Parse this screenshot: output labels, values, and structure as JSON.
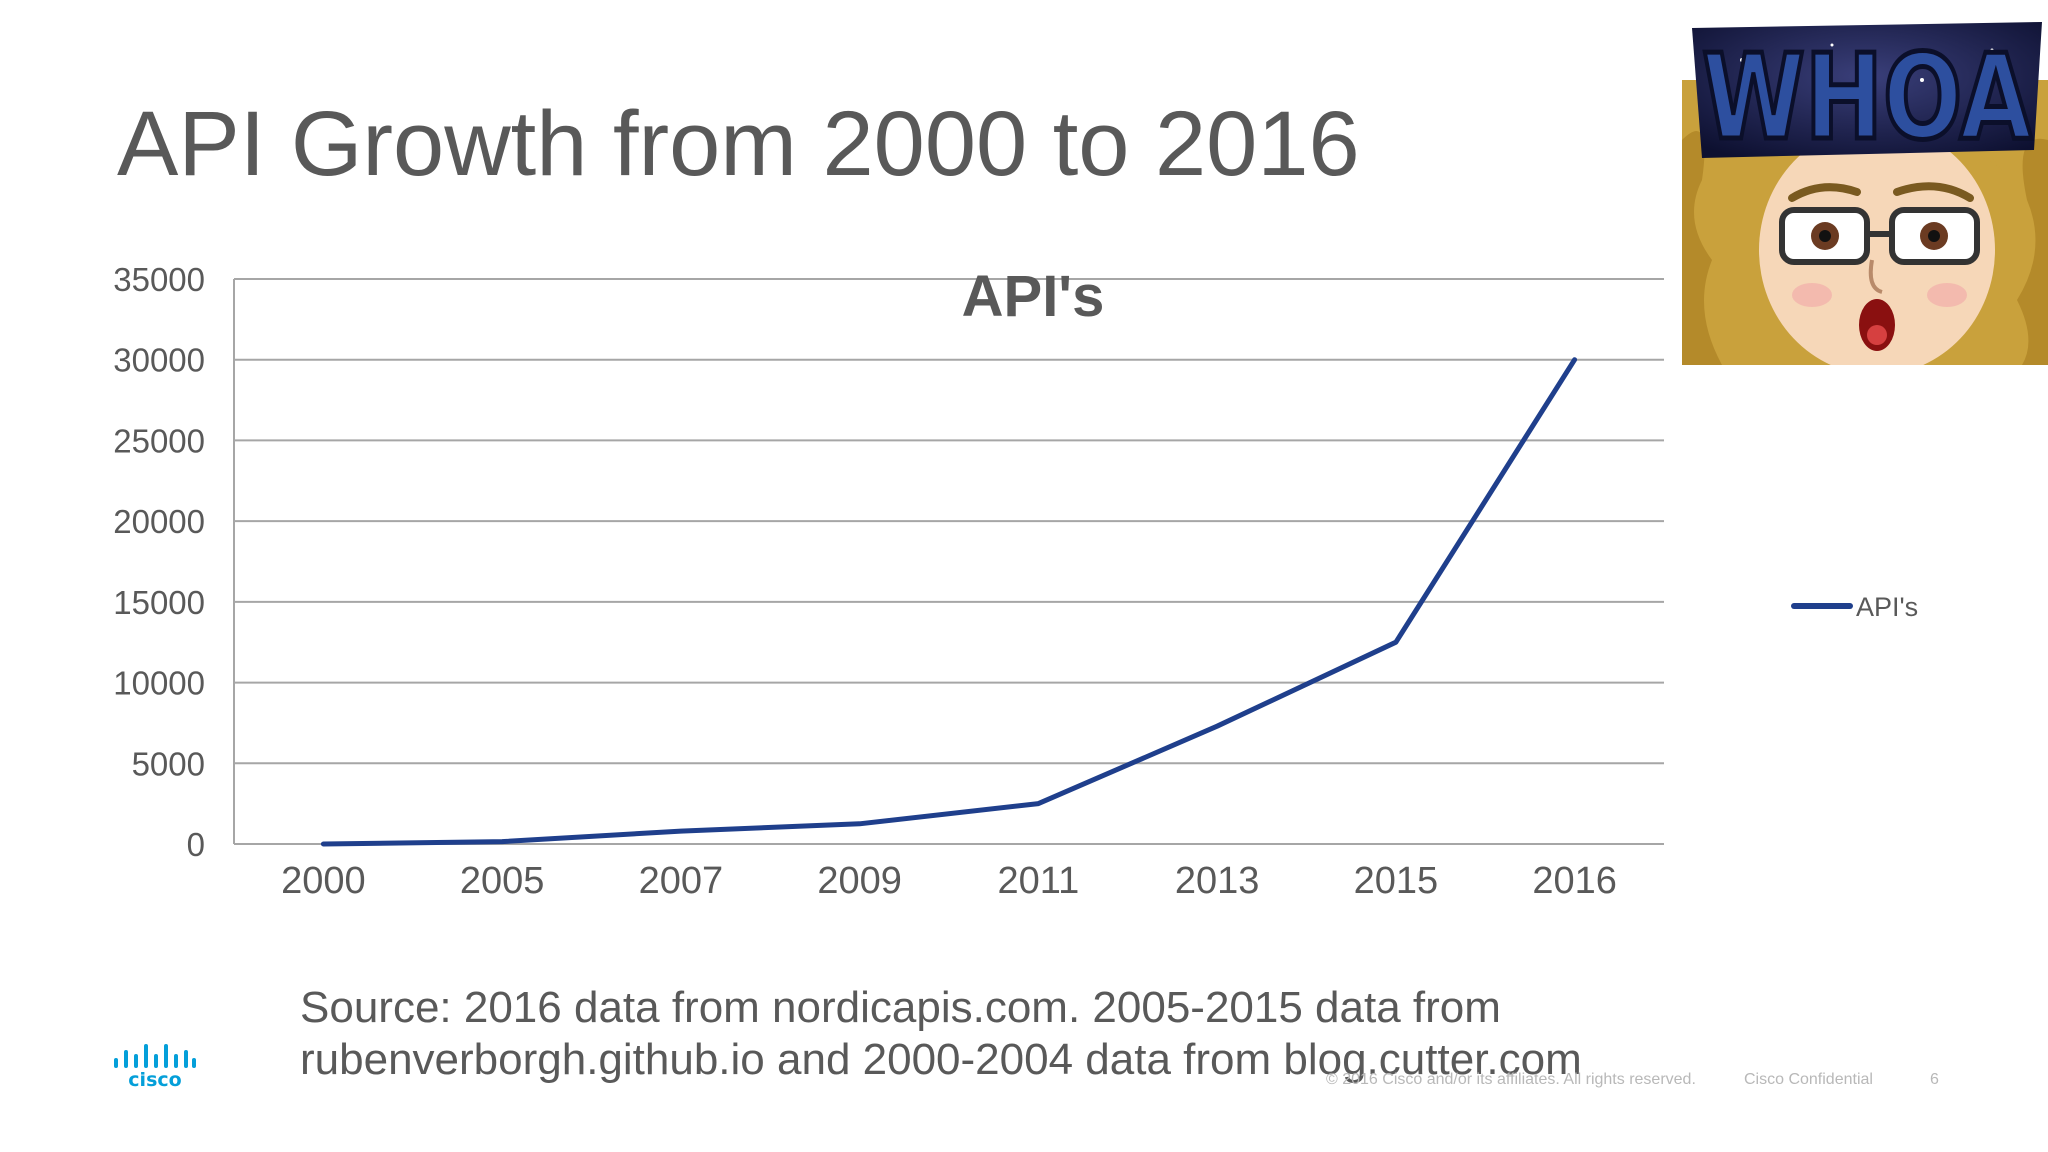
{
  "slide": {
    "title": "API Growth from 2000 to 2016",
    "source_line1": "Source: 2016 data from nordicapis.com. 2005-2015 data from",
    "source_line2": "rubenverborgh.github.io and 2000-2004 data from blog.cutter.com",
    "copyright": "© 2016 Cisco and/or its affiliates. All rights reserved.",
    "confidential": "Cisco Confidential",
    "page_number": "6",
    "logo_text": "cisco",
    "meme_text": "WHOA"
  },
  "colors": {
    "line": "#1f3f8c",
    "grid": "#a6a6a6",
    "text": "#595959",
    "cisco_blue": "#049fd9"
  },
  "chart_data": {
    "type": "line",
    "title": "API's",
    "categories": [
      "2000",
      "2005",
      "2007",
      "2009",
      "2011",
      "2013",
      "2015",
      "2016"
    ],
    "series": [
      {
        "name": "API's",
        "values": [
          0,
          150,
          800,
          1250,
          2500,
          7300,
          12500,
          30000
        ]
      }
    ],
    "y_ticks": [
      "0",
      "5000",
      "10000",
      "15000",
      "20000",
      "25000",
      "30000",
      "35000"
    ],
    "ylim": [
      0,
      35000
    ],
    "grid": true,
    "legend_position": "right",
    "xlabel": "",
    "ylabel": ""
  }
}
